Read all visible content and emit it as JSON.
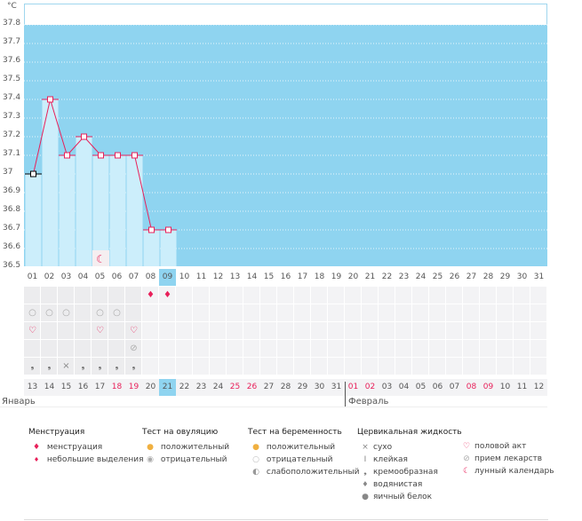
{
  "chart_data": {
    "type": "line",
    "ylabel": "°C",
    "ylim": [
      36.5,
      37.8
    ],
    "yticks": [
      "36.5",
      "36.6",
      "36.7",
      "36.8",
      "36.9",
      "37",
      "37.1",
      "37.2",
      "37.3",
      "37.4",
      "37.5",
      "37.6",
      "37.7",
      "37.8"
    ],
    "cycle_days": [
      "01",
      "02",
      "03",
      "04",
      "05",
      "06",
      "07",
      "08",
      "09",
      "10",
      "11",
      "12",
      "13",
      "14",
      "15",
      "16",
      "17",
      "18",
      "19",
      "20",
      "21",
      "22",
      "23",
      "24",
      "25",
      "26",
      "27",
      "28",
      "29",
      "30",
      "31"
    ],
    "temperatures": [
      37.0,
      37.4,
      37.1,
      37.2,
      37.1,
      37.1,
      37.1,
      36.7,
      36.7
    ],
    "current_day_index": 8,
    "calendar_dates": [
      "13",
      "14",
      "15",
      "16",
      "17",
      "18",
      "19",
      "20",
      "21",
      "22",
      "23",
      "24",
      "25",
      "26",
      "27",
      "28",
      "29",
      "30",
      "31",
      "01",
      "02",
      "03",
      "04",
      "05",
      "06",
      "07",
      "08",
      "09",
      "10",
      "11",
      "12"
    ],
    "red_date_indices": [
      5,
      6,
      12,
      13,
      19,
      20,
      26,
      27
    ],
    "months": [
      "Январь",
      "Февраль"
    ],
    "month_break_index": 19,
    "lunar_day_index": 4,
    "menstruation_days": [
      7,
      8
    ],
    "pregnancy_test_negative_days": [
      0,
      1,
      2,
      4,
      5
    ],
    "intercourse_days": [
      0,
      4,
      6
    ],
    "medication_days": [
      6
    ],
    "cervical": {
      "creamy_days": [
        0,
        1,
        3,
        4,
        5,
        6
      ],
      "dry_days": [
        2
      ]
    }
  },
  "colors": {
    "line": "#e8205a",
    "bg": "#8fd4f0",
    "bar": "#cceefb"
  },
  "legend": {
    "menstruation": {
      "title": "Менструация",
      "items": [
        "менструация",
        "небольшие выделения"
      ]
    },
    "ovulation": {
      "title": "Тест на овуляцию",
      "items": [
        "положительный",
        "отрицательный"
      ]
    },
    "pregnancy": {
      "title": "Тест на беременность",
      "items": [
        "положительный",
        "отрицательный",
        "слабоположительный"
      ]
    },
    "cervical": {
      "title": "Цервикальная жидкость",
      "items": [
        "сухо",
        "клейкая",
        "кремообразная",
        "водянистая",
        "яичный белок"
      ]
    },
    "other": {
      "items": [
        "половой акт",
        "прием лекарств",
        "лунный календарь"
      ]
    }
  }
}
